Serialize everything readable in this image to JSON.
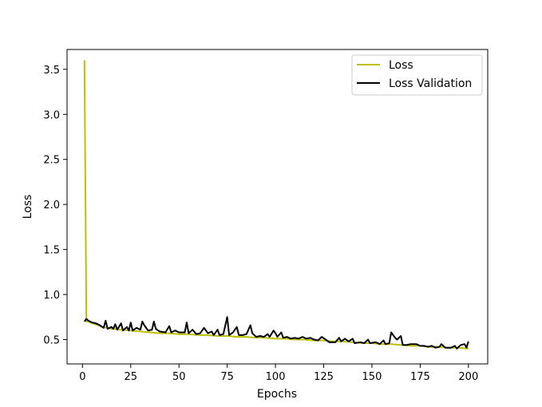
{
  "chart_data": {
    "type": "line",
    "title": "",
    "xlabel": "Epochs",
    "ylabel": "Loss",
    "xlim": [
      -8,
      210
    ],
    "ylim": [
      0.23,
      3.72
    ],
    "xticks": [
      0,
      25,
      50,
      75,
      100,
      125,
      150,
      175,
      200
    ],
    "yticks": [
      0.5,
      1.0,
      1.5,
      2.0,
      2.5,
      3.0,
      3.5
    ],
    "grid": false,
    "legend_position": "top-right",
    "series": [
      {
        "name": "Loss",
        "color": "#bfbf00",
        "points": [
          [
            1,
            3.6
          ],
          [
            2,
            0.7
          ],
          [
            3,
            0.7
          ],
          [
            5,
            0.68
          ],
          [
            8,
            0.66
          ],
          [
            10,
            0.64
          ],
          [
            15,
            0.62
          ],
          [
            20,
            0.61
          ],
          [
            25,
            0.6
          ],
          [
            30,
            0.59
          ],
          [
            35,
            0.58
          ],
          [
            40,
            0.57
          ],
          [
            45,
            0.57
          ],
          [
            50,
            0.56
          ],
          [
            55,
            0.56
          ],
          [
            60,
            0.55
          ],
          [
            65,
            0.55
          ],
          [
            70,
            0.54
          ],
          [
            75,
            0.54
          ],
          [
            80,
            0.53
          ],
          [
            85,
            0.53
          ],
          [
            90,
            0.52
          ],
          [
            95,
            0.52
          ],
          [
            100,
            0.51
          ],
          [
            105,
            0.51
          ],
          [
            110,
            0.5
          ],
          [
            115,
            0.5
          ],
          [
            120,
            0.49
          ],
          [
            125,
            0.49
          ],
          [
            130,
            0.48
          ],
          [
            135,
            0.48
          ],
          [
            140,
            0.47
          ],
          [
            145,
            0.46
          ],
          [
            150,
            0.46
          ],
          [
            155,
            0.45
          ],
          [
            160,
            0.45
          ],
          [
            165,
            0.44
          ],
          [
            170,
            0.43
          ],
          [
            175,
            0.43
          ],
          [
            180,
            0.42
          ],
          [
            185,
            0.42
          ],
          [
            190,
            0.41
          ],
          [
            195,
            0.41
          ],
          [
            200,
            0.4
          ]
        ]
      },
      {
        "name": "Loss Validation",
        "color": "#000000",
        "points": [
          [
            1,
            0.7
          ],
          [
            2,
            0.73
          ],
          [
            3,
            0.71
          ],
          [
            5,
            0.69
          ],
          [
            7,
            0.68
          ],
          [
            9,
            0.66
          ],
          [
            11,
            0.63
          ],
          [
            12,
            0.71
          ],
          [
            13,
            0.62
          ],
          [
            15,
            0.64
          ],
          [
            16,
            0.62
          ],
          [
            17,
            0.67
          ],
          [
            18,
            0.61
          ],
          [
            20,
            0.68
          ],
          [
            21,
            0.6
          ],
          [
            23,
            0.64
          ],
          [
            24,
            0.6
          ],
          [
            25,
            0.69
          ],
          [
            26,
            0.6
          ],
          [
            28,
            0.63
          ],
          [
            30,
            0.61
          ],
          [
            31,
            0.7
          ],
          [
            32,
            0.66
          ],
          [
            34,
            0.6
          ],
          [
            36,
            0.61
          ],
          [
            37,
            0.7
          ],
          [
            38,
            0.62
          ],
          [
            40,
            0.59
          ],
          [
            43,
            0.58
          ],
          [
            45,
            0.65
          ],
          [
            46,
            0.58
          ],
          [
            48,
            0.6
          ],
          [
            50,
            0.58
          ],
          [
            53,
            0.58
          ],
          [
            54,
            0.69
          ],
          [
            55,
            0.57
          ],
          [
            57,
            0.61
          ],
          [
            59,
            0.56
          ],
          [
            61,
            0.57
          ],
          [
            63,
            0.63
          ],
          [
            65,
            0.57
          ],
          [
            67,
            0.59
          ],
          [
            68,
            0.55
          ],
          [
            70,
            0.61
          ],
          [
            71,
            0.55
          ],
          [
            73,
            0.56
          ],
          [
            75,
            0.75
          ],
          [
            76,
            0.55
          ],
          [
            78,
            0.58
          ],
          [
            80,
            0.64
          ],
          [
            81,
            0.55
          ],
          [
            83,
            0.55
          ],
          [
            85,
            0.56
          ],
          [
            87,
            0.66
          ],
          [
            88,
            0.57
          ],
          [
            90,
            0.53
          ],
          [
            92,
            0.54
          ],
          [
            94,
            0.53
          ],
          [
            96,
            0.56
          ],
          [
            97,
            0.53
          ],
          [
            99,
            0.6
          ],
          [
            100,
            0.57
          ],
          [
            101,
            0.53
          ],
          [
            103,
            0.58
          ],
          [
            104,
            0.52
          ],
          [
            106,
            0.53
          ],
          [
            108,
            0.51
          ],
          [
            110,
            0.52
          ],
          [
            112,
            0.51
          ],
          [
            114,
            0.53
          ],
          [
            116,
            0.51
          ],
          [
            118,
            0.52
          ],
          [
            120,
            0.5
          ],
          [
            122,
            0.49
          ],
          [
            124,
            0.53
          ],
          [
            126,
            0.5
          ],
          [
            128,
            0.47
          ],
          [
            131,
            0.47
          ],
          [
            133,
            0.52
          ],
          [
            134,
            0.48
          ],
          [
            136,
            0.51
          ],
          [
            138,
            0.48
          ],
          [
            140,
            0.51
          ],
          [
            141,
            0.46
          ],
          [
            144,
            0.47
          ],
          [
            146,
            0.46
          ],
          [
            148,
            0.5
          ],
          [
            149,
            0.46
          ],
          [
            152,
            0.47
          ],
          [
            154,
            0.45
          ],
          [
            156,
            0.49
          ],
          [
            157,
            0.45
          ],
          [
            159,
            0.46
          ],
          [
            160,
            0.58
          ],
          [
            162,
            0.52
          ],
          [
            163,
            0.5
          ],
          [
            165,
            0.54
          ],
          [
            166,
            0.44
          ],
          [
            168,
            0.44
          ],
          [
            170,
            0.45
          ],
          [
            173,
            0.45
          ],
          [
            175,
            0.43
          ],
          [
            177,
            0.43
          ],
          [
            179,
            0.42
          ],
          [
            181,
            0.43
          ],
          [
            183,
            0.41
          ],
          [
            185,
            0.42
          ],
          [
            186,
            0.45
          ],
          [
            188,
            0.41
          ],
          [
            191,
            0.41
          ],
          [
            193,
            0.43
          ],
          [
            194,
            0.4
          ],
          [
            196,
            0.44
          ],
          [
            198,
            0.45
          ],
          [
            199,
            0.41
          ],
          [
            200,
            0.48
          ]
        ]
      }
    ]
  }
}
